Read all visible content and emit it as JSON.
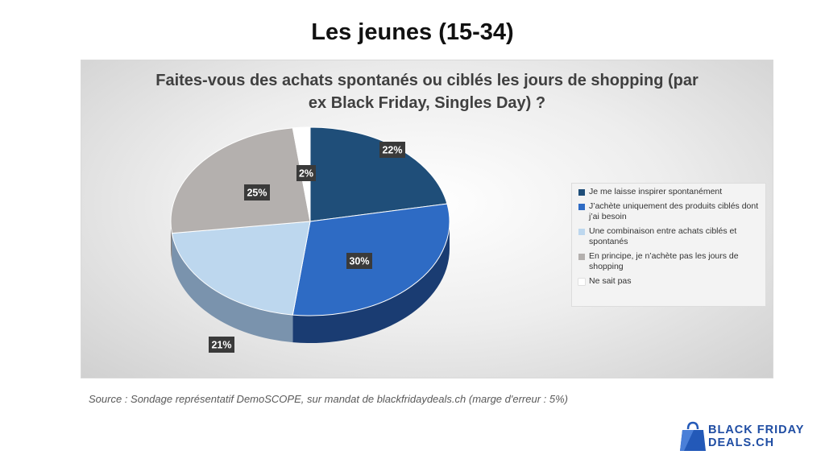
{
  "page": {
    "title": "Les jeunes (15-34)",
    "source": "Source : Sondage représentatif DemoSCOPE, sur mandat de blackfridaydeals.ch (marge d'erreur : 5%)"
  },
  "logo": {
    "line1": "BLACK FRIDAY",
    "line2": "DEALS.CH",
    "icon": "shopping-bag-icon",
    "color": "#2359b8"
  },
  "chart_data": {
    "type": "pie",
    "title_lines": [
      "Faites-vous des achats spontanés ou ciblés les jours de shopping (par",
      "ex Black Friday, Singles Day) ?"
    ],
    "categories": [
      "Je me laisse inspirer spontanément",
      "J’achète uniquement des produits ciblés dont j’ai besoin",
      "Une combinaison entre achats ciblés et spontanés",
      "En principe, je n’achète pas les jours de shopping",
      "Ne sait pas"
    ],
    "values": [
      22,
      30,
      21,
      25,
      2
    ],
    "labels": [
      "22%",
      "30%",
      "21%",
      "25%",
      "2%"
    ],
    "colors": [
      "#1f4e79",
      "#2e6bc4",
      "#bdd7ee",
      "#b4b0ae",
      "#ffffff"
    ],
    "side_colors": [
      "#11304e",
      "#1a3c72",
      "#7a93ad",
      "#7c7876",
      "#cfcfcf"
    ],
    "legend_position": "right",
    "three_d": true
  }
}
